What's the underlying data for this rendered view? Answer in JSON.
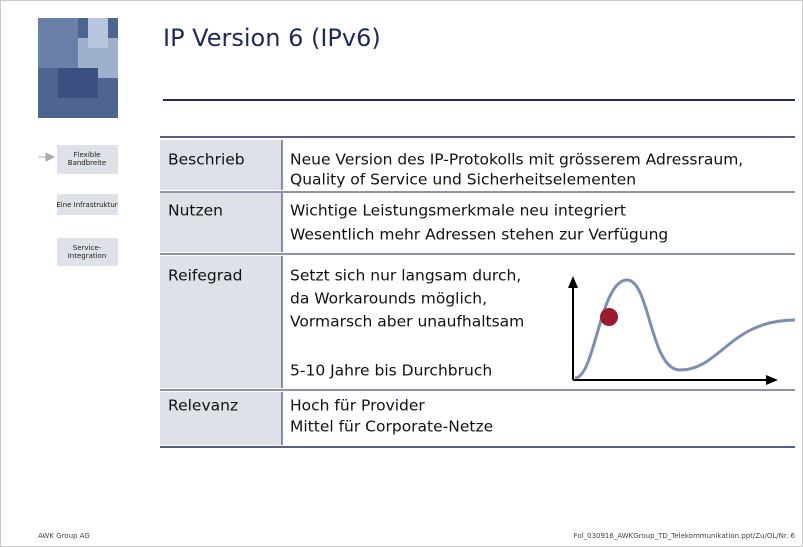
{
  "header": {
    "title": "IP Version 6 (IPv6)"
  },
  "nav": [
    {
      "label": "Flexible Bandbreite"
    },
    {
      "label": "Eine Infrastruktur"
    },
    {
      "label": "Service-Integration"
    }
  ],
  "table": {
    "rows": [
      [
        "Beschrieb",
        [
          "Neue Version des IP-Protokolls mit grösserem Adressraum,",
          "Quality of Service und Sicherheitselementen"
        ]
      ],
      [
        "Nutzen",
        [
          "Wichtige Leistungsmerkmale neu integriert",
          "Wesentlich mehr Adressen stehen zur Verfügung"
        ]
      ],
      [
        "Reifegrad",
        [
          "Setzt sich nur langsam durch,",
          "da Workarounds möglich,",
          "Vormarsch aber unaufhaltsam",
          "5-10 Jahre bis Durchbruch"
        ]
      ],
      [
        "Relevanz",
        [
          "Hoch für Provider",
          "Mittel für Corporate-Netze"
        ]
      ]
    ]
  },
  "footer": {
    "left": "AWK Group AG",
    "right": "Fol_030916_AWKGroup_TD_Telekommunikation.ppt/Zu/OL/Nr. 6"
  }
}
